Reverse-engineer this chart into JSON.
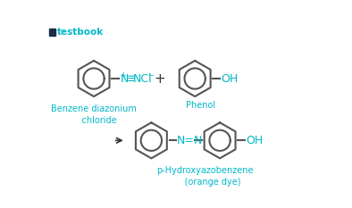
{
  "bg_color": "#ffffff",
  "ring_color": "#555555",
  "text_color": "#00b8c8",
  "ring_lw": 1.5,
  "label1": "Benzene diazonium\n    chloride",
  "label2": "Phenol",
  "label3": "p-Hydroxyazobenzene\n     (orange dye)",
  "plus_text": "+",
  "oh_text": "OH",
  "nncl_equiv": "≡",
  "arrow_text": "→",
  "logo_text": "testbook",
  "logo_icon_color": "#1a2e4a"
}
